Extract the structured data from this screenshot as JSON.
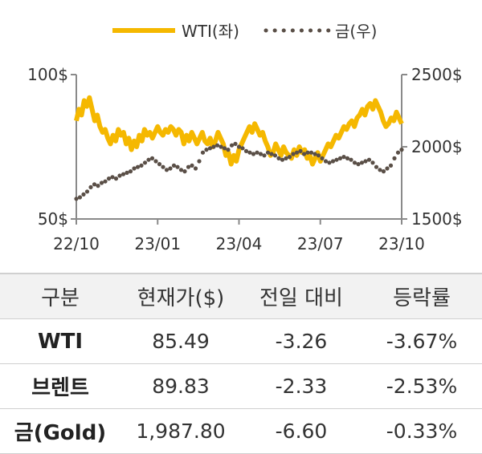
{
  "chart_data": {
    "type": "line",
    "x_ticks": [
      "22/10",
      "23/01",
      "23/04",
      "23/07",
      "23/10"
    ],
    "y_left": {
      "ticks": [
        "100$",
        "50$"
      ],
      "range": [
        50,
        100
      ]
    },
    "y_right": {
      "ticks": [
        "2500$",
        "2000$",
        "1500$"
      ],
      "range": [
        1500,
        2500
      ]
    },
    "legend_position": "top-center",
    "series": [
      {
        "name": "WTI(좌)",
        "axis": "left",
        "color": "#f5b800",
        "style": "solid",
        "values": [
          84,
          88,
          86,
          91,
          89,
          92,
          88,
          84,
          86,
          82,
          80,
          81,
          78,
          76,
          79,
          77,
          81,
          79,
          80,
          76,
          78,
          74,
          77,
          75,
          79,
          77,
          81,
          79,
          80,
          78,
          80,
          82,
          80,
          79,
          81,
          80,
          82,
          81,
          79,
          81,
          80,
          76,
          79,
          77,
          80,
          78,
          76,
          78,
          80,
          77,
          76,
          78,
          75,
          77,
          80,
          78,
          76,
          72,
          73,
          69,
          72,
          70,
          74,
          76,
          78,
          80,
          82,
          80,
          83,
          81,
          79,
          80,
          77,
          75,
          72,
          73,
          76,
          74,
          72,
          75,
          73,
          72,
          71,
          74,
          72,
          75,
          73,
          74,
          71,
          72,
          69,
          71,
          73,
          70,
          72,
          74,
          76,
          75,
          77,
          79,
          78,
          80,
          82,
          81,
          83,
          84,
          82,
          85,
          86,
          88,
          86,
          89,
          90,
          88,
          91,
          89,
          87,
          84,
          82,
          83,
          85,
          84,
          87,
          85,
          83
        ]
      },
      {
        "name": "금(우)",
        "axis": "right",
        "color": "#5a4f47",
        "style": "dotted",
        "values": [
          1640,
          1650,
          1670,
          1690,
          1720,
          1740,
          1730,
          1750,
          1760,
          1780,
          1790,
          1780,
          1800,
          1810,
          1820,
          1830,
          1850,
          1860,
          1870,
          1890,
          1910,
          1920,
          1900,
          1880,
          1860,
          1840,
          1850,
          1870,
          1860,
          1840,
          1830,
          1860,
          1870,
          1850,
          1900,
          1960,
          1980,
          1990,
          2000,
          2010,
          2000,
          1990,
          1980,
          2010,
          2020,
          2000,
          1990,
          1970,
          1960,
          1950,
          1960,
          1950,
          1940,
          1960,
          1950,
          1940,
          1920,
          1910,
          1920,
          1930,
          1950,
          1960,
          1970,
          1950,
          1960,
          1960,
          1950,
          1940,
          1920,
          1900,
          1890,
          1900,
          1910,
          1920,
          1930,
          1920,
          1910,
          1890,
          1880,
          1890,
          1900,
          1910,
          1890,
          1860,
          1840,
          1830,
          1850,
          1870,
          1920,
          1960,
          1980
        ]
      }
    ]
  },
  "table": {
    "headers": [
      "구분",
      "현재가($)",
      "전일 대비",
      "등락률"
    ],
    "rows": [
      [
        "WTI",
        "85.49",
        "-3.26",
        "-3.67%"
      ],
      [
        "브렌트",
        "89.83",
        "-2.33",
        "-2.53%"
      ],
      [
        "금(Gold)",
        "1,987.80",
        "-6.60",
        "-0.33%"
      ]
    ]
  }
}
